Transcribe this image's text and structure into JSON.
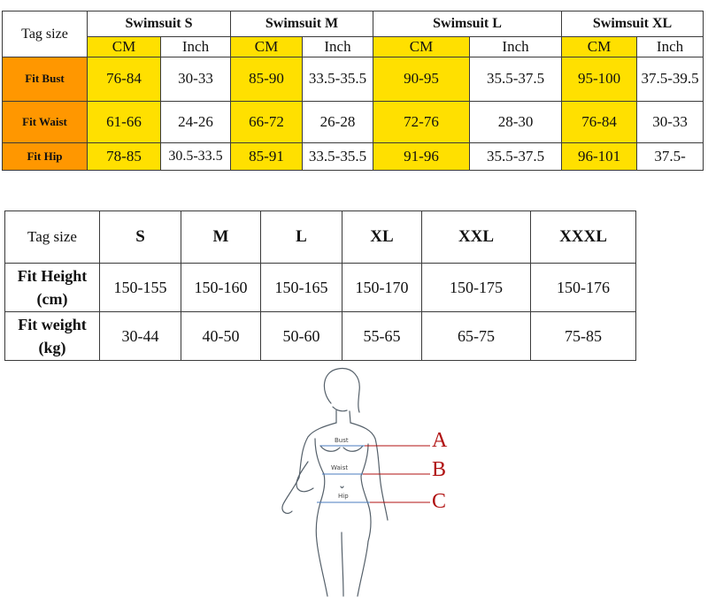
{
  "table1": {
    "tag_size_label": "Tag size",
    "sizes": [
      "Swimsuit S",
      "Swimsuit M",
      "Swimsuit L",
      "Swimsuit XL"
    ],
    "units": [
      "CM",
      "Inch"
    ],
    "rows": [
      {
        "label": "Fit  Bust",
        "values": [
          "76-84",
          "30-33",
          "85-90",
          "33.5-35.5",
          "90-95",
          "35.5-37.5",
          "95-100",
          "37.5-39.5"
        ]
      },
      {
        "label": "Fit Waist",
        "values": [
          "61-66",
          "24-26",
          "66-72",
          "26-28",
          "72-76",
          "28-30",
          "76-84",
          "30-33"
        ]
      },
      {
        "label": "Fit Hip",
        "values": [
          "78-85",
          "30.5-33.5",
          "85-91",
          "33.5-35.5",
          "91-96",
          "35.5-37.5",
          "96-101",
          "37.5-"
        ]
      }
    ],
    "colors": {
      "label_bg": "#ff9700",
      "cm_bg": "#ffe000"
    }
  },
  "table2": {
    "tag_size_label": "Tag size",
    "sizes": [
      "S",
      "M",
      "L",
      "XL",
      "XXL",
      "XXXL"
    ],
    "rows": [
      {
        "label": "Fit Height (cm)",
        "values": [
          "150-155",
          "150-160",
          "150-165",
          "150-170",
          "150-175",
          "150-176"
        ]
      },
      {
        "label": "Fit weight (kg)",
        "values": [
          "30-44",
          "40-50",
          "50-60",
          "55-65",
          "65-75",
          "75-85"
        ]
      }
    ]
  },
  "figure": {
    "bust_label": "Bust",
    "waist_label": "Waist",
    "hip_label": "Hip",
    "markers": [
      "A",
      "B",
      "C"
    ],
    "marker_color": "#b01010"
  }
}
